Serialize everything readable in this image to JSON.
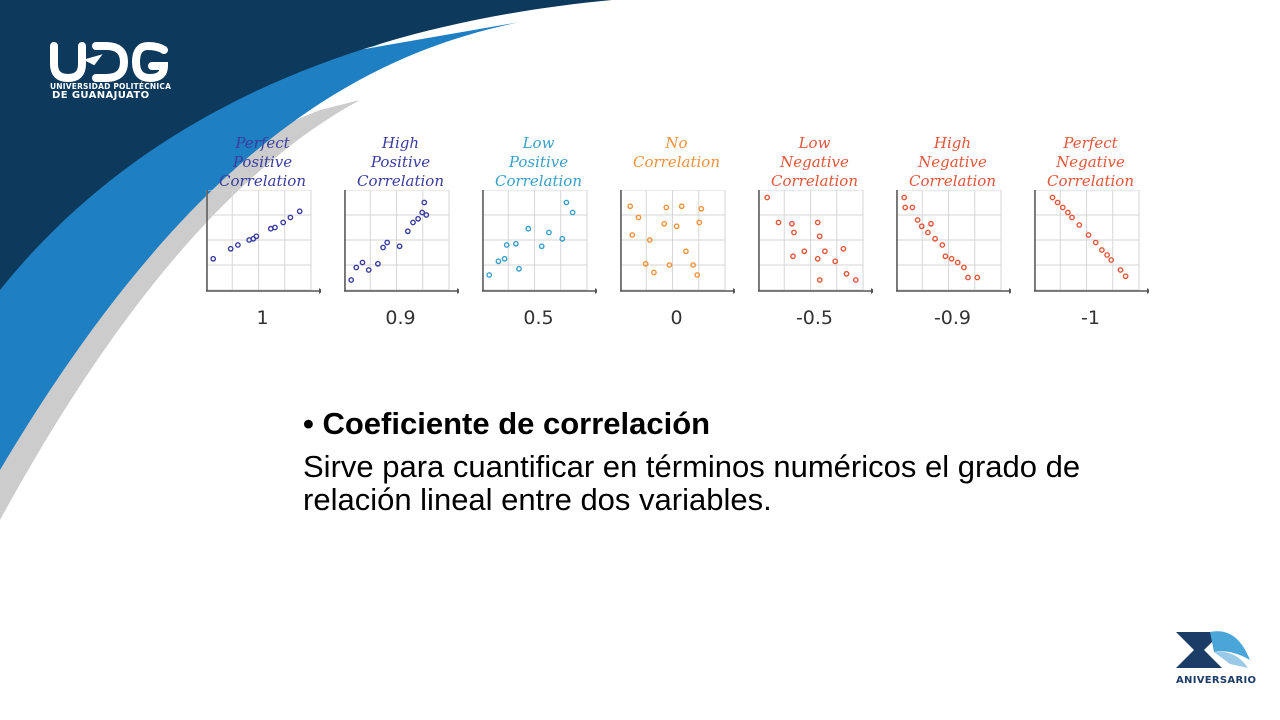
{
  "branding": {
    "logo_name": "udg-logo",
    "university_line": "UNIVERSIDAD POLITÉCNICA",
    "location_line": "DE GUANAJUATO",
    "anniversary_label": "ANIVERSARIO",
    "colors": {
      "navy": "#0d3a5c",
      "blue": "#1e7fc3",
      "teal": "#38a3b8",
      "gray": "#b4b4b4"
    }
  },
  "slide": {
    "bullet": "•",
    "heading": "Coeficiente de correlación",
    "description": "Sirve para cuantificar en términos numéricos el grado de relación lineal entre dos variables."
  },
  "chart_data": [
    {
      "type": "scatter",
      "title": [
        "Perfect",
        "Positive",
        "Correlation"
      ],
      "value_label": "1",
      "color": "#3a3d9e",
      "points": [
        [
          0.5,
          2.5
        ],
        [
          2.2,
          3.3
        ],
        [
          2.9,
          3.6
        ],
        [
          4.0,
          4.0
        ],
        [
          4.4,
          4.1
        ],
        [
          4.7,
          4.3
        ],
        [
          6.1,
          4.9
        ],
        [
          6.5,
          5.0
        ],
        [
          7.3,
          5.4
        ],
        [
          8.0,
          5.8
        ],
        [
          8.9,
          6.3
        ]
      ]
    },
    {
      "type": "scatter",
      "title": [
        "High",
        "Positive",
        "Correlation"
      ],
      "value_label": "0.9",
      "color": "#3a3d9e",
      "points": [
        [
          0.5,
          0.8
        ],
        [
          1.0,
          1.8
        ],
        [
          1.6,
          2.2
        ],
        [
          2.2,
          1.6
        ],
        [
          3.1,
          2.1
        ],
        [
          3.6,
          3.4
        ],
        [
          4.0,
          3.8
        ],
        [
          5.2,
          3.5
        ],
        [
          6.0,
          4.7
        ],
        [
          6.5,
          5.4
        ],
        [
          7.0,
          5.7
        ],
        [
          7.4,
          6.2
        ],
        [
          7.6,
          7.0
        ],
        [
          7.8,
          6.0
        ]
      ]
    },
    {
      "type": "scatter",
      "title": [
        "Low",
        "Positive",
        "Correlation"
      ],
      "value_label": "0.5",
      "color": "#3a9fc8",
      "points": [
        [
          0.5,
          1.2
        ],
        [
          1.4,
          2.3
        ],
        [
          2.0,
          2.5
        ],
        [
          2.2,
          3.6
        ],
        [
          3.1,
          3.7
        ],
        [
          3.4,
          1.7
        ],
        [
          4.3,
          4.9
        ],
        [
          5.6,
          3.5
        ],
        [
          6.3,
          4.6
        ],
        [
          7.6,
          4.1
        ],
        [
          8.0,
          7.0
        ],
        [
          8.6,
          6.2
        ]
      ]
    },
    {
      "type": "scatter",
      "title": [
        "No",
        "Correlation"
      ],
      "value_label": "0",
      "color": "#f0923a",
      "points": [
        [
          0.8,
          6.7
        ],
        [
          1.6,
          5.8
        ],
        [
          1.0,
          4.4
        ],
        [
          2.3,
          2.1
        ],
        [
          2.7,
          4.0
        ],
        [
          3.1,
          1.4
        ],
        [
          4.3,
          6.6
        ],
        [
          4.1,
          5.3
        ],
        [
          4.6,
          2.0
        ],
        [
          5.3,
          5.1
        ],
        [
          5.8,
          6.7
        ],
        [
          6.2,
          3.1
        ],
        [
          6.9,
          2.0
        ],
        [
          7.3,
          1.2
        ],
        [
          7.5,
          5.4
        ],
        [
          7.7,
          6.5
        ]
      ]
    },
    {
      "type": "scatter",
      "title": [
        "Low",
        "Negative",
        "Correlation"
      ],
      "value_label": "-0.5",
      "color": "#e2563a",
      "points": [
        [
          0.7,
          7.4
        ],
        [
          1.8,
          5.4
        ],
        [
          3.1,
          5.3
        ],
        [
          3.3,
          4.6
        ],
        [
          4.3,
          3.1
        ],
        [
          3.2,
          2.7
        ],
        [
          5.6,
          5.4
        ],
        [
          5.8,
          4.3
        ],
        [
          5.6,
          2.5
        ],
        [
          6.3,
          3.1
        ],
        [
          5.8,
          0.8
        ],
        [
          7.3,
          2.3
        ],
        [
          8.1,
          3.3
        ],
        [
          8.4,
          1.3
        ],
        [
          9.3,
          0.8
        ]
      ]
    },
    {
      "type": "scatter",
      "title": [
        "High",
        "Negative",
        "Correlation"
      ],
      "value_label": "-0.9",
      "color": "#e2563a",
      "points": [
        [
          0.6,
          7.4
        ],
        [
          0.7,
          6.6
        ],
        [
          1.4,
          6.6
        ],
        [
          1.9,
          5.6
        ],
        [
          2.3,
          5.1
        ],
        [
          2.9,
          4.6
        ],
        [
          3.2,
          5.3
        ],
        [
          3.6,
          4.1
        ],
        [
          4.3,
          3.6
        ],
        [
          4.6,
          2.7
        ],
        [
          5.2,
          2.5
        ],
        [
          5.8,
          2.2
        ],
        [
          6.4,
          1.8
        ],
        [
          6.8,
          1.0
        ],
        [
          7.7,
          1.0
        ]
      ]
    },
    {
      "type": "scatter",
      "title": [
        "Perfect",
        "Negative",
        "Correlation"
      ],
      "value_label": "-1",
      "color": "#e2563a",
      "points": [
        [
          1.6,
          7.4
        ],
        [
          2.1,
          7.0
        ],
        [
          2.6,
          6.6
        ],
        [
          3.1,
          6.2
        ],
        [
          3.5,
          5.8
        ],
        [
          4.2,
          5.2
        ],
        [
          5.1,
          4.4
        ],
        [
          5.8,
          3.8
        ],
        [
          6.4,
          3.2
        ],
        [
          6.9,
          2.8
        ],
        [
          7.3,
          2.4
        ],
        [
          8.2,
          1.6
        ],
        [
          8.7,
          1.1
        ]
      ]
    }
  ]
}
